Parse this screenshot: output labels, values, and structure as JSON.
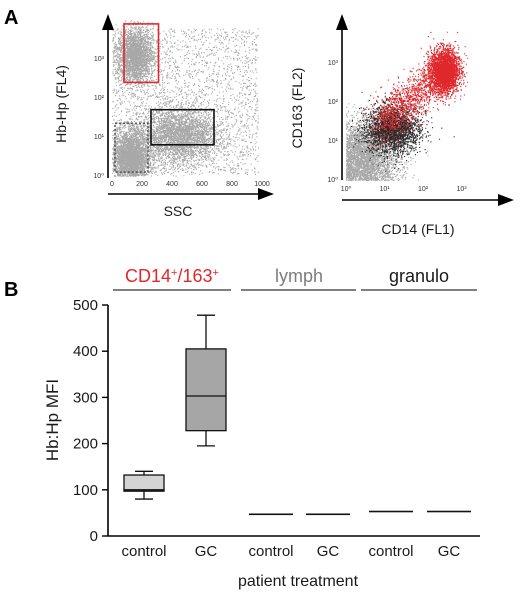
{
  "panel_a_label": "A",
  "panel_b_label": "B",
  "colors": {
    "red": "#e0282c",
    "grey_dots": "#a8a8a8",
    "dark_dots": "#2a2a2a",
    "lymph_grey": "#7d7d7d",
    "box_light": "#d4d4d4",
    "box_mid": "#a6a6a6"
  },
  "chart_data": [
    {
      "type": "scatter",
      "panel": "A-left",
      "xlabel": "SSC",
      "ylabel": "Hb-Hp (FL4)",
      "xlim": [
        0,
        1000
      ],
      "ylim_log": [
        0,
        4
      ],
      "x_ticks": [
        "0",
        "200",
        "400",
        "600",
        "800",
        "1000"
      ],
      "y_ticks": [
        "10⁰",
        "10¹",
        "10²",
        "10³"
      ],
      "populations": [
        {
          "color": "grey",
          "x_center": 150,
          "y_center_log": 3.1,
          "gate": "red"
        },
        {
          "color": "grey",
          "x_center": 450,
          "y_center_log": 1.05,
          "gate": "black"
        },
        {
          "color": "grey",
          "x_center": 120,
          "y_center_log": 0.5,
          "gate": "dotted"
        }
      ],
      "gates": [
        {
          "name": "monocyte-gate",
          "color": "red",
          "x": [
            80,
            310
          ],
          "y_log": [
            2.4,
            3.9
          ]
        },
        {
          "name": "granulocyte-gate",
          "color": "black",
          "x": [
            260,
            680
          ],
          "y_log": [
            0.8,
            1.7
          ]
        },
        {
          "name": "lymphocyte-gate",
          "color": "grey-dotted",
          "x": [
            20,
            240
          ],
          "y_log": [
            0.1,
            1.35
          ]
        }
      ]
    },
    {
      "type": "scatter",
      "panel": "A-right",
      "xlabel": "CD14 (FL1)",
      "ylabel": "CD163 (FL2)",
      "xlim_log": [
        0,
        4
      ],
      "ylim_log": [
        0,
        4
      ],
      "x_ticks": [
        "10⁰",
        "10¹",
        "10²",
        "10³"
      ],
      "y_ticks": [
        "10⁰",
        "10¹",
        "10²",
        "10³"
      ],
      "populations": [
        {
          "color": "red",
          "x_center_log": 2.55,
          "y_center_log": 2.8
        },
        {
          "color": "black",
          "x_center_log": 1.2,
          "y_center_log": 1.3
        },
        {
          "color": "grey",
          "x_center_log": 0.5,
          "y_center_log": 0.6
        }
      ]
    },
    {
      "type": "box",
      "panel": "B",
      "ylabel": "Hb:Hp MFI",
      "xlabel": "patient treatment",
      "ylim": [
        0,
        500
      ],
      "y_ticks": [
        0,
        100,
        200,
        300,
        400,
        500
      ],
      "group_base": "CD14",
      "group_sup1": "+",
      "group_mid": "/163",
      "group_sup2": "+",
      "groups": [
        {
          "name": "lymph",
          "color": "#7d7d7d"
        },
        {
          "name": "granulo",
          "color": "#1a1a1a"
        }
      ],
      "categories": [
        "control",
        "GC",
        "control",
        "GC",
        "control",
        "GC"
      ],
      "boxes": [
        {
          "group": 0,
          "category": "control",
          "min": 80,
          "q1": 97,
          "median": 100,
          "q3": 132,
          "max": 140,
          "fill": "#d4d4d4"
        },
        {
          "group": 0,
          "category": "GC",
          "min": 195,
          "q1": 228,
          "median": 303,
          "q3": 405,
          "max": 478,
          "fill": "#a6a6a6"
        },
        {
          "group": 1,
          "category": "control",
          "min": 47,
          "q1": 47,
          "median": 47,
          "q3": 47,
          "max": 47,
          "fill": "#000000"
        },
        {
          "group": 1,
          "category": "GC",
          "min": 46,
          "q1": 46,
          "median": 47,
          "q3": 48,
          "max": 48,
          "fill": "#000000"
        },
        {
          "group": 2,
          "category": "control",
          "min": 52,
          "q1": 52,
          "median": 53,
          "q3": 54,
          "max": 54,
          "fill": "#000000"
        },
        {
          "group": 2,
          "category": "GC",
          "min": 52,
          "q1": 52,
          "median": 53,
          "q3": 54,
          "max": 54,
          "fill": "#000000"
        }
      ]
    }
  ]
}
